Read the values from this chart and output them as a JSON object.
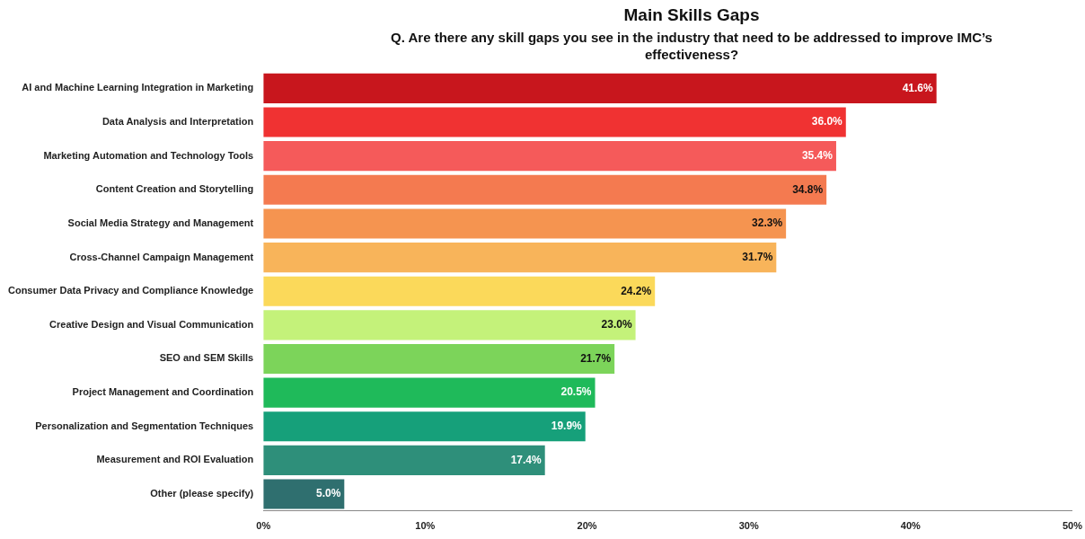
{
  "chart_data": {
    "type": "bar",
    "orientation": "horizontal",
    "title": "Main Skills Gaps",
    "subtitle": "Q. Are there any skill gaps you see in the industry that need to be addressed to improve IMC’s effectiveness?",
    "categories": [
      "AI and Machine Learning Integration in Marketing",
      "Data Analysis and Interpretation",
      "Marketing Automation and Technology Tools",
      "Content Creation and Storytelling",
      "Social Media Strategy and Management",
      "Cross-Channel Campaign Management",
      "Consumer Data Privacy and Compliance Knowledge",
      "Creative Design and Visual Communication",
      "SEO and SEM Skills",
      "Project Management and Coordination",
      "Personalization and Segmentation Techniques",
      "Measurement and ROI Evaluation",
      "Other (please specify)"
    ],
    "values": [
      41.6,
      36.0,
      35.4,
      34.8,
      32.3,
      31.7,
      24.2,
      23.0,
      21.7,
      20.5,
      19.9,
      17.4,
      5.0
    ],
    "value_labels": [
      "41.6%",
      "36.0%",
      "35.4%",
      "34.8%",
      "32.3%",
      "31.7%",
      "24.2%",
      "23.0%",
      "21.7%",
      "20.5%",
      "19.9%",
      "17.4%",
      "5.0%"
    ],
    "colors": [
      "#c8161d",
      "#f03232",
      "#f55a5a",
      "#f47a50",
      "#f59450",
      "#f8b45a",
      "#fbd95a",
      "#c4f27a",
      "#7cd45a",
      "#1fba5a",
      "#16a07a",
      "#2e8f7a",
      "#2f6f6f"
    ],
    "xlim": [
      0,
      50
    ],
    "xticks": [
      {
        "value": 0,
        "label": "0%"
      },
      {
        "value": 10,
        "label": "10%"
      },
      {
        "value": 20,
        "label": "20%"
      },
      {
        "value": 30,
        "label": "30%"
      },
      {
        "value": 40,
        "label": "40%"
      },
      {
        "value": 50,
        "label": "50%"
      }
    ],
    "grid": false,
    "legend": false
  }
}
